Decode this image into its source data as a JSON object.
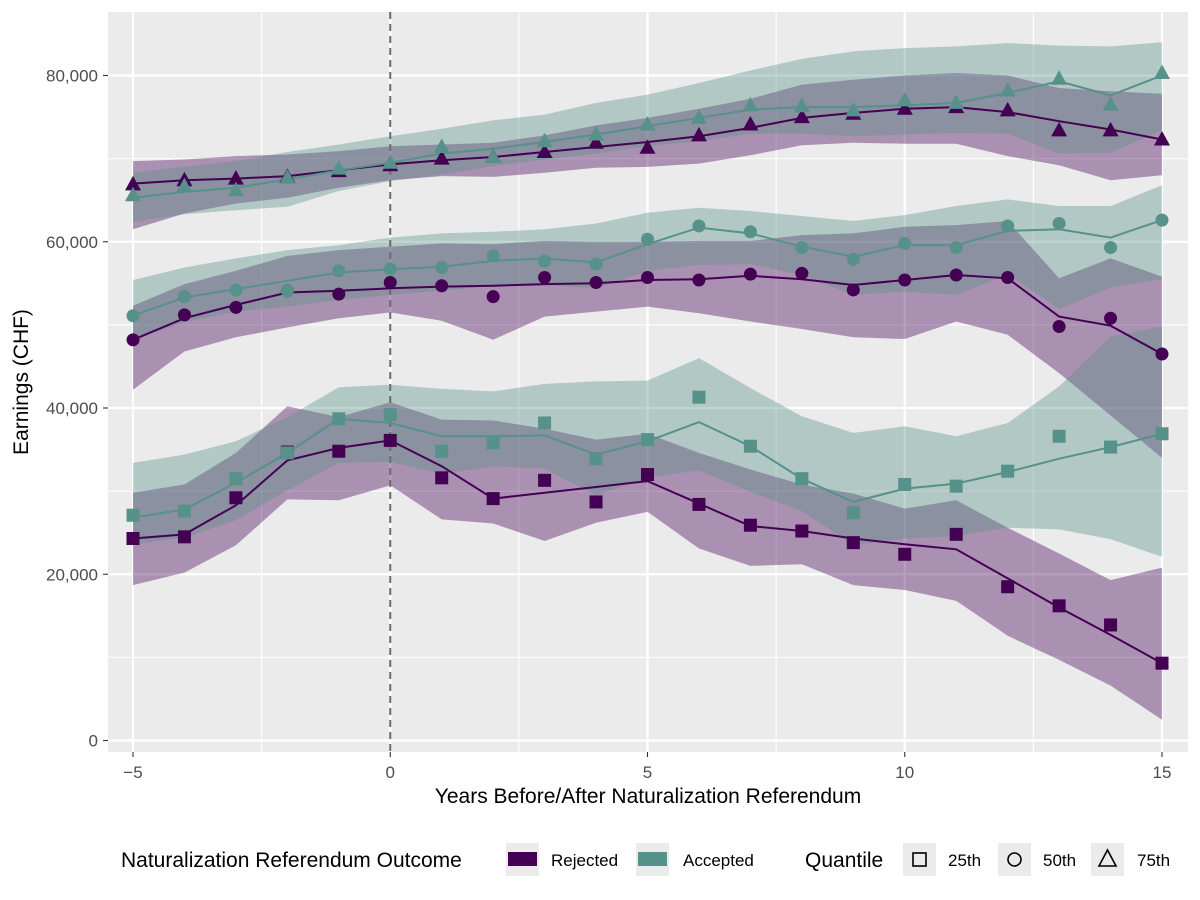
{
  "chart_data": {
    "type": "line",
    "xlabel": "Years Before/After Naturalization Referendum",
    "ylabel": "Earnings (CHF)",
    "xlim": [
      -5.3,
      15.5
    ],
    "ylim": [
      -2000,
      88000
    ],
    "xticks": [
      -5,
      0,
      5,
      10,
      15
    ],
    "xtick_labels": [
      "−5",
      "0",
      "5",
      "10",
      "15"
    ],
    "yticks": [
      0,
      20000,
      40000,
      60000,
      80000
    ],
    "ytick_labels": [
      "0",
      "20,000",
      "40,000",
      "60,000",
      "80,000"
    ],
    "grid": true,
    "reference_line_x": 0,
    "x": [
      -5,
      -4,
      -3,
      -2,
      -1,
      0,
      1,
      2,
      3,
      4,
      5,
      6,
      7,
      8,
      9,
      10,
      11,
      12,
      13,
      14,
      15
    ],
    "series": [
      {
        "outcome": "Rejected",
        "quantile": "25th",
        "marker": "square",
        "points": [
          24300,
          24500,
          29200,
          34700,
          34800,
          36100,
          31600,
          29100,
          31300,
          28700,
          32000,
          28400,
          25900,
          25200,
          23800,
          22400,
          24800,
          18500,
          16200,
          13900,
          9300
        ],
        "fit": [
          24300,
          24800,
          28300,
          33700,
          35200,
          36100,
          33000,
          29100,
          29800,
          30500,
          31200,
          28500,
          25800,
          25200,
          24300,
          23600,
          23000,
          19500,
          16000,
          12700,
          9300
        ],
        "band_low": [
          18700,
          20200,
          23500,
          29000,
          28900,
          30700,
          26600,
          26100,
          24000,
          26200,
          27500,
          23100,
          21000,
          21200,
          18700,
          18100,
          16800,
          12600,
          9700,
          6600,
          2500
        ],
        "band_high": [
          29800,
          30800,
          34600,
          40200,
          38900,
          40700,
          38600,
          38500,
          37500,
          36200,
          36900,
          34600,
          32600,
          30800,
          29700,
          27900,
          28900,
          25600,
          22500,
          19300,
          20800
        ]
      },
      {
        "outcome": "Rejected",
        "quantile": "50th",
        "marker": "circle",
        "points": [
          48200,
          51200,
          52100,
          54100,
          53700,
          55100,
          54700,
          53400,
          55700,
          55100,
          55700,
          55400,
          56100,
          56200,
          54200,
          55400,
          56000,
          55700,
          49800,
          50800,
          46500
        ],
        "fit": [
          48200,
          50800,
          52400,
          53900,
          54100,
          54400,
          54600,
          54700,
          54900,
          55000,
          55400,
          55500,
          55900,
          55500,
          54800,
          55400,
          56000,
          55600,
          51000,
          49900,
          46500
        ],
        "band_low": [
          42200,
          46800,
          48500,
          49700,
          50800,
          51500,
          50500,
          48200,
          51000,
          51600,
          52200,
          51400,
          50400,
          49500,
          48500,
          48300,
          50400,
          48800,
          44200,
          39100,
          34000
        ],
        "band_high": [
          52300,
          54900,
          56500,
          58300,
          59000,
          59400,
          59800,
          59700,
          60100,
          60000,
          60000,
          60100,
          60100,
          60800,
          61000,
          61800,
          62000,
          62500,
          55600,
          58000,
          55800
        ]
      },
      {
        "outcome": "Rejected",
        "quantile": "75th",
        "marker": "triangle",
        "points": [
          66900,
          67400,
          67600,
          67800,
          68500,
          69200,
          70000,
          70200,
          70800,
          71900,
          71300,
          72800,
          74100,
          75000,
          75400,
          76000,
          76200,
          75800,
          73400,
          73400,
          72300
        ],
        "fit": [
          67000,
          67400,
          67600,
          67900,
          68600,
          69300,
          69800,
          70200,
          70800,
          71400,
          72000,
          72700,
          73700,
          74900,
          75500,
          76000,
          76200,
          75600,
          74500,
          73500,
          72300
        ],
        "band_low": [
          61500,
          63400,
          64600,
          65300,
          66500,
          67400,
          67900,
          67800,
          68300,
          68900,
          69000,
          69400,
          70400,
          71600,
          71900,
          71800,
          71800,
          70300,
          69200,
          67400,
          68000
        ],
        "band_high": [
          69700,
          69900,
          70300,
          70500,
          70900,
          71500,
          71700,
          71900,
          72800,
          74000,
          74900,
          76000,
          77200,
          78900,
          79500,
          80000,
          80300,
          80000,
          78500,
          78100,
          77800
        ]
      },
      {
        "outcome": "Accepted",
        "quantile": "25th",
        "marker": "square",
        "points": [
          27100,
          27600,
          31500,
          34600,
          38700,
          39200,
          34800,
          35800,
          38200,
          33900,
          36200,
          41300,
          35400,
          31500,
          27400,
          30800,
          30600,
          32400,
          36600,
          35300,
          36900
        ],
        "fit": [
          26800,
          27800,
          31000,
          34600,
          38700,
          38200,
          36600,
          36600,
          36700,
          34400,
          36000,
          38300,
          35400,
          31500,
          28700,
          30300,
          30900,
          32300,
          33900,
          35300,
          36900
        ],
        "band_low": [
          23600,
          24400,
          26500,
          30100,
          33400,
          33500,
          32100,
          33000,
          32700,
          29500,
          31600,
          32500,
          29900,
          27600,
          23500,
          24300,
          24600,
          25600,
          25400,
          24200,
          22100
        ],
        "band_high": [
          33400,
          34400,
          36000,
          38900,
          42500,
          42800,
          42300,
          42000,
          42900,
          43200,
          43300,
          46000,
          42400,
          39000,
          37000,
          37800,
          36600,
          38200,
          42600,
          48600,
          49800
        ]
      },
      {
        "outcome": "Accepted",
        "quantile": "50th",
        "marker": "circle",
        "points": [
          51100,
          53400,
          54200,
          54100,
          56500,
          56700,
          56900,
          58300,
          57700,
          57300,
          60300,
          61900,
          61200,
          59300,
          57900,
          59800,
          59300,
          61900,
          62200,
          59300,
          62600
        ],
        "fit": [
          51100,
          53300,
          54300,
          55300,
          56300,
          56700,
          57000,
          57700,
          58000,
          57500,
          59700,
          61700,
          61000,
          59400,
          58200,
          59600,
          59600,
          61300,
          61500,
          60500,
          62600
        ],
        "band_low": [
          48300,
          50300,
          51600,
          52200,
          53000,
          53600,
          54100,
          54700,
          54800,
          54400,
          56500,
          57200,
          57300,
          56000,
          53600,
          54000,
          53600,
          56100,
          51900,
          54500,
          55500
        ],
        "band_high": [
          55400,
          56900,
          58000,
          59000,
          59600,
          60500,
          61000,
          61200,
          61500,
          62200,
          63500,
          64100,
          63700,
          63100,
          62500,
          63200,
          64300,
          65100,
          64300,
          64300,
          66800
        ]
      },
      {
        "outcome": "Accepted",
        "quantile": "75th",
        "marker": "triangle",
        "points": [
          65600,
          66700,
          66200,
          67700,
          68800,
          69500,
          71400,
          70200,
          72100,
          72900,
          74100,
          74900,
          76400,
          76300,
          75800,
          77000,
          76700,
          78200,
          79600,
          76500,
          80300
        ],
        "fit": [
          65300,
          66000,
          66500,
          67500,
          68600,
          69500,
          70600,
          71200,
          72000,
          72900,
          73900,
          74900,
          75900,
          76200,
          76200,
          76400,
          76700,
          77900,
          79300,
          77600,
          80000
        ],
        "band_low": [
          62400,
          63300,
          63800,
          64200,
          66100,
          67300,
          68100,
          69100,
          69900,
          70600,
          71500,
          72100,
          73000,
          73000,
          72700,
          72900,
          73100,
          73000,
          70600,
          70700,
          73400
        ],
        "band_high": [
          68300,
          69000,
          69700,
          70800,
          71700,
          72700,
          73600,
          74600,
          75300,
          76700,
          77700,
          79100,
          80600,
          82000,
          82900,
          83300,
          83500,
          83900,
          83600,
          83500,
          84000
        ]
      }
    ]
  },
  "legend": {
    "outcome_title": "Naturalization Referendum Outcome",
    "outcome_items": [
      {
        "label": "Rejected",
        "color": "#440154"
      },
      {
        "label": "Accepted",
        "color": "#56918a"
      }
    ],
    "quantile_title": "Quantile",
    "quantile_items": [
      {
        "label": "25th",
        "shape": "square"
      },
      {
        "label": "50th",
        "shape": "circle"
      },
      {
        "label": "75th",
        "shape": "triangle"
      }
    ]
  },
  "colors": {
    "rejected_line": "#440154",
    "rejected_band": "#440154",
    "accepted_line": "#56918a",
    "accepted_band": "#56918a",
    "panel_background": "#ebebeb",
    "grid": "#ffffff"
  }
}
